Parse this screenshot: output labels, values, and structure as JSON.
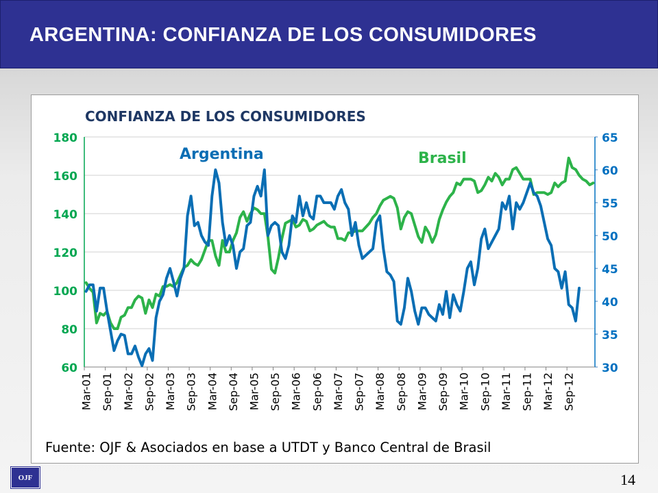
{
  "header": {
    "title": "ARGENTINA:  CONFIANZA DE LOS CONSUMIDORES"
  },
  "footer": {
    "logo": "OJF",
    "page_number": "14"
  },
  "chart_data": {
    "type": "line",
    "title": "CONFIANZA DE LOS CONSUMIDORES",
    "source": "Fuente: OJF & Asociados en base a UTDT y Banco Central de Brasil",
    "x_ticks": [
      "Mar-01",
      "Sep-01",
      "Mar-02",
      "Sep-02",
      "Mar-03",
      "Sep-03",
      "Mar-04",
      "Sep-04",
      "Mar-05",
      "Sep-05",
      "Mar-06",
      "Sep-06",
      "Mar-07",
      "Sep-07",
      "Mar-08",
      "Sep-08",
      "Mar-09",
      "Sep-09",
      "Mar-10",
      "Sep-10",
      "Mar-11",
      "Sep-11",
      "Mar-12",
      "Sep-12"
    ],
    "y_left": {
      "min": 60,
      "max": 180,
      "ticks": [
        60,
        80,
        100,
        120,
        140,
        160,
        180
      ],
      "color": "#00a650"
    },
    "y_right": {
      "min": 30,
      "max": 65,
      "ticks": [
        30,
        35,
        40,
        45,
        50,
        55,
        60,
        65
      ],
      "color": "#0070c0"
    },
    "grid": true,
    "series": [
      {
        "name": "Brasil",
        "axis": "left",
        "color": "#2db34a",
        "label_position": "Mar-09 / 166",
        "values": [
          104,
          101,
          99,
          83,
          88,
          87,
          89,
          83,
          80,
          80,
          86,
          87,
          91,
          91,
          95,
          97,
          96,
          88,
          95,
          91,
          98,
          97,
          102,
          102,
          103,
          102,
          104,
          108,
          112,
          113,
          116,
          114,
          113,
          116,
          121,
          126,
          126,
          118,
          113,
          126,
          120,
          120,
          126,
          130,
          138,
          141,
          136,
          140,
          143,
          142,
          140,
          140,
          128,
          111,
          109,
          117,
          127,
          135,
          136,
          137,
          133,
          134,
          137,
          136,
          131,
          132,
          134,
          135,
          136,
          134,
          133,
          133,
          127,
          127,
          126,
          130,
          130,
          131,
          131,
          131,
          133,
          135,
          138,
          140,
          144,
          147,
          148,
          149,
          148,
          143,
          132,
          138,
          141,
          140,
          134,
          128,
          125,
          133,
          130,
          125,
          129,
          137,
          142,
          146,
          149,
          151,
          156,
          155,
          158,
          158,
          158,
          157,
          151,
          152,
          155,
          159,
          157,
          161,
          159,
          155,
          158,
          158,
          163,
          164,
          161,
          158,
          158,
          158,
          150,
          151,
          151,
          151,
          150,
          151,
          156,
          154,
          156,
          157,
          169,
          164,
          163,
          160,
          158,
          157,
          155,
          156
        ]
      },
      {
        "name": "Argentina",
        "axis": "right",
        "color": "#0a6eb4",
        "label_position": "Mar-04 / 61.5",
        "values": [
          41.5,
          42.5,
          42.5,
          38.5,
          42,
          42,
          38.5,
          35.5,
          32.5,
          34,
          35,
          34.8,
          32,
          32,
          33.2,
          31.5,
          30.2,
          32,
          32.8,
          31,
          37.5,
          40,
          41,
          43.5,
          45,
          43,
          40.8,
          43.5,
          45,
          53,
          56,
          51.5,
          52,
          50,
          49,
          48.5,
          56,
          60,
          58,
          52,
          48.5,
          50,
          48.5,
          45,
          47.5,
          48,
          51.5,
          52,
          56,
          57.5,
          56,
          60,
          50,
          51.5,
          52,
          51.5,
          47.5,
          46.5,
          48.5,
          53,
          52,
          56,
          53,
          55,
          53,
          52.5,
          56,
          56,
          55,
          55,
          55,
          54,
          56,
          57,
          55,
          54,
          50,
          52,
          48.5,
          46.5,
          47,
          47.5,
          48,
          52,
          53,
          48,
          44.5,
          44,
          43,
          37,
          36.5,
          39,
          43.5,
          41.5,
          38.5,
          36.5,
          39,
          39,
          38,
          37.5,
          37,
          39.5,
          38,
          41.5,
          37.5,
          41,
          39.5,
          38.5,
          41.5,
          45,
          46,
          42.5,
          45,
          49.5,
          51,
          48,
          49,
          50,
          51,
          55,
          54,
          56,
          51,
          55,
          54,
          55,
          56.5,
          58,
          56.5,
          56,
          54.5,
          52,
          49.5,
          48.5,
          45,
          44.5,
          42,
          44.5,
          39.5,
          39,
          37,
          42
        ]
      }
    ]
  }
}
